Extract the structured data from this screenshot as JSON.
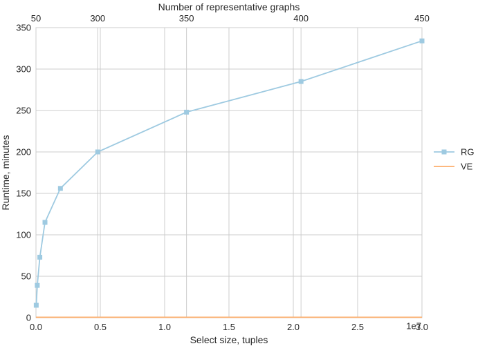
{
  "chart_data": {
    "type": "line",
    "xlabel": "Select size, tuples",
    "ylabel": "Runtime, minutes",
    "x_offset_label": "1e7",
    "top_axis_label": "Number of representative graphs",
    "x_ticks": [
      "0.0",
      "0.5",
      "1.0",
      "1.5",
      "2.0",
      "2.5",
      "3.0"
    ],
    "y_ticks": [
      "0",
      "50",
      "100",
      "150",
      "200",
      "250",
      "300",
      "350"
    ],
    "top_ticks": [
      "50",
      "300",
      "350",
      "400",
      "450"
    ],
    "top_tick_positions": [
      0,
      4800000,
      11700000,
      20600000,
      30000000
    ],
    "xlim": [
      0,
      30000000
    ],
    "ylim": [
      0,
      350
    ],
    "grid": true,
    "legend_position": "right",
    "series": [
      {
        "name": "RG",
        "color": "#9ecae1",
        "marker": "square",
        "points": [
          [
            20000,
            15
          ],
          [
            100000,
            39
          ],
          [
            300000,
            73
          ],
          [
            700000,
            115
          ],
          [
            1900000,
            156
          ],
          [
            4800000,
            200
          ],
          [
            11700000,
            248
          ],
          [
            20600000,
            285
          ],
          [
            30000000,
            334
          ]
        ]
      },
      {
        "name": "VE",
        "color": "#fdae6b",
        "marker": "none",
        "points": [
          [
            0,
            0.5
          ],
          [
            30000000,
            0.5
          ]
        ]
      }
    ]
  }
}
